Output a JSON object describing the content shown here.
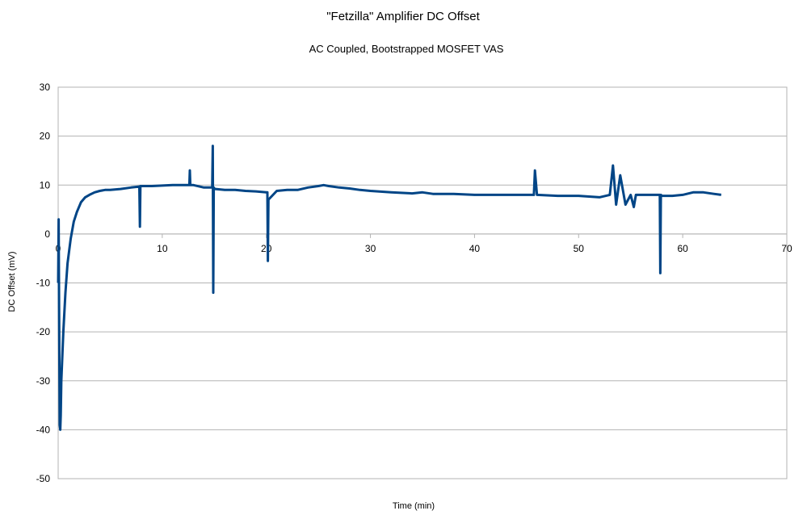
{
  "chart_data": {
    "type": "line",
    "title": "\"Fetzilla\" Amplifier DC Offset",
    "subtitle": "AC Coupled, Bootstrapped MOSFET VAS",
    "xlabel": "Time (min)",
    "ylabel": "DC Offset (mV)",
    "xlim": [
      0,
      70
    ],
    "ylim": [
      -50,
      30
    ],
    "xticks": [
      0,
      10,
      20,
      30,
      40,
      50,
      60,
      70
    ],
    "yticks": [
      30,
      20,
      10,
      0,
      -10,
      -20,
      -30,
      -40,
      -50
    ],
    "grid": "horizontal",
    "legend": "none",
    "series": [
      {
        "color": "#004586",
        "x": [
          0,
          0.05,
          0.1,
          0.15,
          0.2,
          0.25,
          0.3,
          0.5,
          0.7,
          0.9,
          1.2,
          1.5,
          1.8,
          2.2,
          2.6,
          3.0,
          3.5,
          4.0,
          4.5,
          5.0,
          6.0,
          7.0,
          7.8,
          7.85,
          7.9,
          8.0,
          9.0,
          10.0,
          11.0,
          12.0,
          12.6,
          12.65,
          12.7,
          13.0,
          14.0,
          14.8,
          14.85,
          14.9,
          14.95,
          15.0,
          15.05,
          15.1,
          16.0,
          17.0,
          18.0,
          19.0,
          20.0,
          20.1,
          20.15,
          20.2,
          21.0,
          22.0,
          23.0,
          24.0,
          25.0,
          25.5,
          26.0,
          27.0,
          28.0,
          29.0,
          30.0,
          32.0,
          34.0,
          35.0,
          36.0,
          38.0,
          40.0,
          42.0,
          44.0,
          45.7,
          45.8,
          46.0,
          48.0,
          50.0,
          52.0,
          53.0,
          53.3,
          53.6,
          54.0,
          54.5,
          55.0,
          55.3,
          55.5,
          56.0,
          57.0,
          57.8,
          57.85,
          57.9,
          58.0,
          59.0,
          60.0,
          61.0,
          62.0,
          63.0,
          63.7
        ],
        "values": [
          -10,
          3,
          -20,
          -39,
          -40,
          -37,
          -30,
          -20,
          -12,
          -6,
          -1,
          2.5,
          4.5,
          6.5,
          7.5,
          8,
          8.5,
          8.8,
          9,
          9,
          9.2,
          9.5,
          9.7,
          1.5,
          9.8,
          9.8,
          9.8,
          9.9,
          10,
          10,
          10,
          13,
          10,
          10,
          9.5,
          9.5,
          18,
          -12,
          9.5,
          9.3,
          9.2,
          9.2,
          9,
          9,
          8.8,
          8.7,
          8.5,
          8.5,
          -5.5,
          7,
          8.8,
          9,
          9,
          9.5,
          9.8,
          10,
          9.8,
          9.5,
          9.3,
          9,
          8.8,
          8.5,
          8.3,
          8.5,
          8.2,
          8.2,
          8,
          8,
          8,
          8,
          13,
          8,
          7.8,
          7.8,
          7.5,
          8,
          14,
          6,
          12,
          6,
          8,
          5.5,
          8,
          8,
          8,
          8,
          -8,
          8,
          7.8,
          7.8,
          8,
          8.5,
          8.5,
          8.2,
          8
        ]
      }
    ]
  }
}
